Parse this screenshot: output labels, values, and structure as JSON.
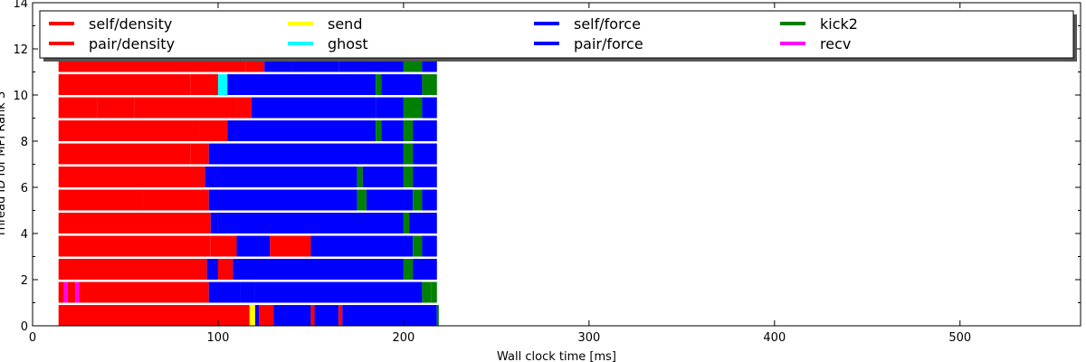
{
  "chart_data": {
    "type": "bar",
    "orientation": "horizontal-timeline",
    "xlabel": "Wall clock time [ms]",
    "ylabel": "Thread ID for MPI Rank 3",
    "xlim": [
      0,
      565
    ],
    "ylim": [
      0,
      14
    ],
    "xticks": [
      0,
      100,
      200,
      300,
      400,
      500
    ],
    "yticks": [
      0,
      2,
      4,
      6,
      8,
      10,
      12,
      14
    ],
    "grid": false,
    "legend_position": "top",
    "legend": [
      {
        "label": "self/density",
        "color": "#ff0000"
      },
      {
        "label": "pair/density",
        "color": "#ff0000"
      },
      {
        "label": "send",
        "color": "#ffff00"
      },
      {
        "label": "ghost",
        "color": "#00ffff"
      },
      {
        "label": "self/force",
        "color": "#0000ff"
      },
      {
        "label": "pair/force",
        "color": "#0000ff"
      },
      {
        "label": "kick2",
        "color": "#008000"
      },
      {
        "label": "recv",
        "color": "#ff00ff"
      }
    ],
    "series": [
      {
        "thread": 0,
        "segments": [
          [
            14,
            117,
            "#ff0000"
          ],
          [
            117,
            120,
            "#ffff00"
          ],
          [
            120,
            122,
            "#0000ff"
          ],
          [
            122,
            130,
            "#ff0000"
          ],
          [
            130,
            150,
            "#0000ff"
          ],
          [
            150,
            152,
            "#ff0000"
          ],
          [
            152,
            165,
            "#0000ff"
          ],
          [
            165,
            167,
            "#ff0000"
          ],
          [
            167,
            218,
            "#0000ff"
          ],
          [
            218,
            219,
            "#008000"
          ]
        ]
      },
      {
        "thread": 1,
        "segments": [
          [
            14,
            17,
            "#ff0000"
          ],
          [
            17,
            19,
            "#ff00ff"
          ],
          [
            19,
            23,
            "#ff0000"
          ],
          [
            23,
            25,
            "#ff00ff"
          ],
          [
            25,
            95,
            "#ff0000"
          ],
          [
            95,
            112,
            "#0000ff"
          ],
          [
            112,
            120,
            "#0000ff"
          ],
          [
            120,
            210,
            "#0000ff"
          ],
          [
            210,
            215,
            "#008000"
          ],
          [
            215,
            218,
            "#008000"
          ]
        ]
      },
      {
        "thread": 2,
        "segments": [
          [
            14,
            94,
            "#ff0000"
          ],
          [
            94,
            100,
            "#0000ff"
          ],
          [
            100,
            108,
            "#ff0000"
          ],
          [
            108,
            200,
            "#0000ff"
          ],
          [
            200,
            205,
            "#008000"
          ],
          [
            205,
            218,
            "#0000ff"
          ]
        ]
      },
      {
        "thread": 3,
        "segments": [
          [
            14,
            96,
            "#ff0000"
          ],
          [
            96,
            110,
            "#ff0000"
          ],
          [
            110,
            128,
            "#0000ff"
          ],
          [
            128,
            150,
            "#ff0000"
          ],
          [
            150,
            205,
            "#0000ff"
          ],
          [
            205,
            210,
            "#008000"
          ],
          [
            210,
            218,
            "#0000ff"
          ]
        ]
      },
      {
        "thread": 4,
        "segments": [
          [
            14,
            96,
            "#ff0000"
          ],
          [
            96,
            100,
            "#0000ff"
          ],
          [
            100,
            200,
            "#0000ff"
          ],
          [
            200,
            203,
            "#008000"
          ],
          [
            203,
            218,
            "#0000ff"
          ]
        ]
      },
      {
        "thread": 5,
        "segments": [
          [
            14,
            60,
            "#ff0000"
          ],
          [
            60,
            95,
            "#ff0000"
          ],
          [
            95,
            175,
            "#0000ff"
          ],
          [
            175,
            180,
            "#008000"
          ],
          [
            180,
            205,
            "#0000ff"
          ],
          [
            205,
            210,
            "#008000"
          ],
          [
            210,
            218,
            "#0000ff"
          ]
        ]
      },
      {
        "thread": 6,
        "segments": [
          [
            14,
            93,
            "#ff0000"
          ],
          [
            93,
            175,
            "#0000ff"
          ],
          [
            175,
            178,
            "#008000"
          ],
          [
            178,
            200,
            "#0000ff"
          ],
          [
            200,
            205,
            "#008000"
          ],
          [
            205,
            218,
            "#0000ff"
          ]
        ]
      },
      {
        "thread": 7,
        "segments": [
          [
            14,
            85,
            "#ff0000"
          ],
          [
            85,
            95,
            "#ff0000"
          ],
          [
            95,
            200,
            "#0000ff"
          ],
          [
            200,
            205,
            "#008000"
          ],
          [
            205,
            218,
            "#0000ff"
          ]
        ]
      },
      {
        "thread": 8,
        "segments": [
          [
            14,
            90,
            "#ff0000"
          ],
          [
            90,
            105,
            "#ff0000"
          ],
          [
            105,
            185,
            "#0000ff"
          ],
          [
            185,
            188,
            "#008000"
          ],
          [
            188,
            200,
            "#0000ff"
          ],
          [
            200,
            205,
            "#008000"
          ],
          [
            205,
            218,
            "#0000ff"
          ]
        ]
      },
      {
        "thread": 9,
        "segments": [
          [
            14,
            35,
            "#ff0000"
          ],
          [
            35,
            55,
            "#ff0000"
          ],
          [
            55,
            110,
            "#ff0000"
          ],
          [
            110,
            118,
            "#ff0000"
          ],
          [
            118,
            185,
            "#0000ff"
          ],
          [
            185,
            200,
            "#0000ff"
          ],
          [
            200,
            210,
            "#008000"
          ],
          [
            210,
            218,
            "#0000ff"
          ]
        ]
      },
      {
        "thread": 10,
        "segments": [
          [
            14,
            85,
            "#ff0000"
          ],
          [
            85,
            100,
            "#ff0000"
          ],
          [
            100,
            105,
            "#00ffff"
          ],
          [
            105,
            185,
            "#0000ff"
          ],
          [
            185,
            188,
            "#008000"
          ],
          [
            188,
            210,
            "#0000ff"
          ],
          [
            210,
            218,
            "#008000"
          ]
        ]
      },
      {
        "thread": 11,
        "segments": [
          [
            14,
            115,
            "#ff0000"
          ],
          [
            115,
            125,
            "#ff0000"
          ],
          [
            125,
            140,
            "#0000ff"
          ],
          [
            140,
            165,
            "#0000ff"
          ],
          [
            165,
            200,
            "#0000ff"
          ],
          [
            200,
            210,
            "#008000"
          ],
          [
            210,
            218,
            "#0000ff"
          ]
        ]
      }
    ]
  }
}
